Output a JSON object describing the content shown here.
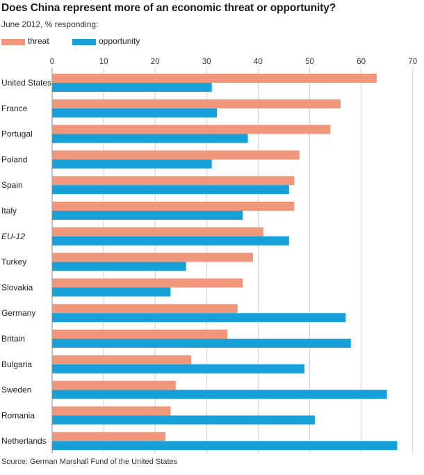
{
  "chart_data": {
    "type": "bar",
    "orientation": "horizontal",
    "title": "Does China represent more of an economic threat or opportunity?",
    "subtitle": "June 2012, % responding:",
    "source": "Source: German Marshall Fund of the United States",
    "xlim": [
      0,
      70
    ],
    "xticks": [
      0,
      10,
      20,
      30,
      40,
      50,
      60,
      70
    ],
    "grid": true,
    "legend_position": "top-left",
    "categories": [
      "United States",
      "France",
      "Portugal",
      "Poland",
      "Spain",
      "Italy",
      "EU-12",
      "Turkey",
      "Slovakia",
      "Germany",
      "Britain",
      "Bulgaria",
      "Sweden",
      "Romania",
      "Netherlands"
    ],
    "italic_categories": [
      "EU-12"
    ],
    "series": [
      {
        "name": "threat",
        "color": "#f0967a",
        "values": [
          63,
          56,
          54,
          48,
          47,
          47,
          41,
          39,
          37,
          36,
          34,
          27,
          24,
          23,
          22
        ]
      },
      {
        "name": "opportunity",
        "color": "#18a1d9",
        "values": [
          31,
          32,
          38,
          31,
          46,
          37,
          46,
          26,
          23,
          57,
          58,
          49,
          65,
          51,
          67
        ]
      }
    ]
  }
}
